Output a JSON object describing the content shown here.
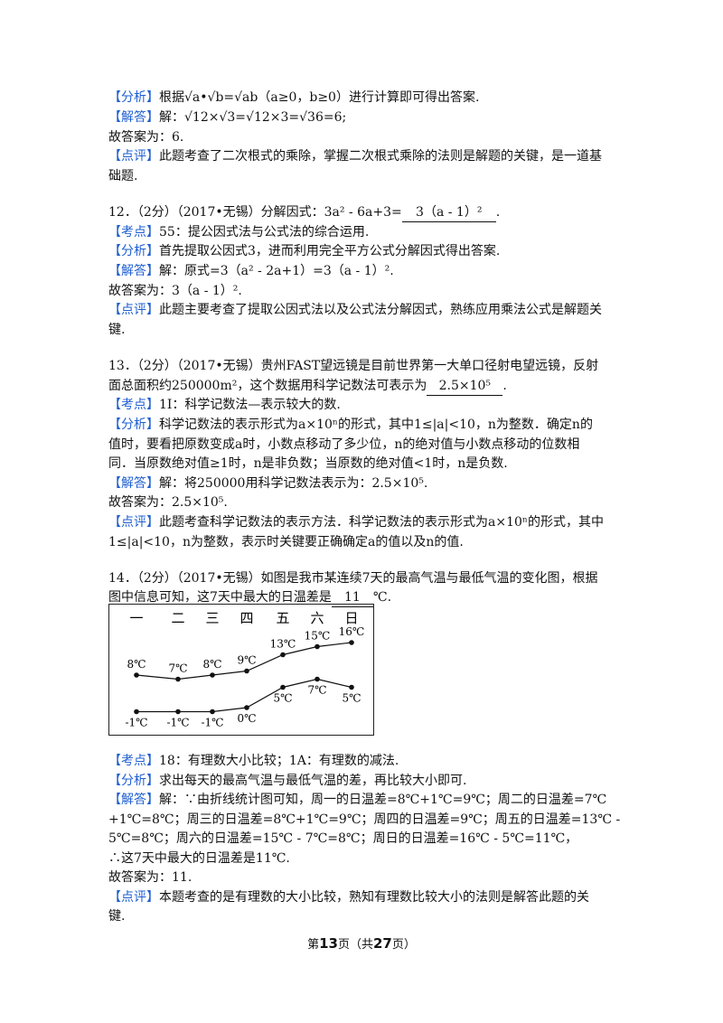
{
  "q11": {
    "analysis_tag": "【分析】",
    "analysis_text": "根据√a•√b=√ab（a≥0，b≥0）进行计算即可得出答案.",
    "solution_tag": "【解答】",
    "solution_text": "解：√12×√3=√12×3=√36=6;",
    "answer": "故答案为：6.",
    "comment_tag": "【点评】",
    "comment_1": "此题考查了二次根式的乘除，掌握二次根式乘除的法则是解题的关键，是一道基",
    "comment_2": "础题."
  },
  "q12": {
    "stem_prefix": "12．（2分）（2017•无锡）分解因式：3a² - 6a+3=",
    "blank": "3（a - 1）²",
    "stem_suffix": ".",
    "point_tag": "【考点】",
    "point_text": "55：提公因式法与公式法的综合运用.",
    "analysis_tag": "【分析】",
    "analysis_text": "首先提取公因式3，进而利用完全平方公式分解因式得出答案.",
    "solution_tag": "【解答】",
    "solution_text": "解：原式=3（a² - 2a+1）=3（a - 1）².",
    "answer": "故答案为：3（a - 1）².",
    "comment_tag": "【点评】",
    "comment_1": "此题主要考查了提取公因式法以及公式法分解因式，熟练应用乘法公式是解题关",
    "comment_2": "键."
  },
  "q13": {
    "stem_1": "13．（2分）（2017•无锡）贵州FAST望远镜是目前世界第一大单口径射电望远镜，反射",
    "stem_2_prefix": "面总面积约250000m²，这个数据用科学记数法可表示为",
    "blank": "2.5×10⁵",
    "stem_2_suffix": ".",
    "point_tag": "【考点】",
    "point_text": "1I：科学记数法—表示较大的数.",
    "analysis_tag": "【分析】",
    "analysis_1": "科学记数法的表示形式为a×10ⁿ的形式，其中1≤|a|<10，n为整数．确定n的",
    "analysis_2": "值时，要看把原数变成a时，小数点移动了多少位，n的绝对值与小数点移动的位数相",
    "analysis_3": "同．当原数绝对值≥1时，n是非负数；当原数的绝对值<1时，n是负数.",
    "solution_tag": "【解答】",
    "solution_text": "解：将250000用科学记数法表示为：2.5×10⁵.",
    "answer": "故答案为：2.5×10⁵.",
    "comment_tag": "【点评】",
    "comment_1": "此题考查科学记数法的表示方法．科学记数法的表示形式为a×10ⁿ的形式，其中",
    "comment_2": "1≤|a|<10，n为整数，表示时关键要正确确定a的值以及n的值."
  },
  "q14": {
    "stem_1": "14．（2分）（2017•无锡）如图是我市某连续7天的最高气温与最低气温的变化图，根据",
    "stem_2_prefix": "图中信息可知，这7天中最大的日温差是",
    "blank": "11",
    "stem_2_suffix": "℃.",
    "point_tag": "【考点】",
    "point_text": "18：有理数大小比较；1A：有理数的减法.",
    "analysis_tag": "【分析】",
    "analysis_text": "求出每天的最高气温与最低气温的差，再比较大小即可.",
    "solution_tag": "【解答】",
    "solution_1": "解：∵由折线统计图可知，周一的日温差=8℃+1℃=9℃；周二的日温差=7℃",
    "solution_2": "+1℃=8℃；周三的日温差=8℃+1℃=9℃；周四的日温差=9℃；周五的日温差=13℃ -",
    "solution_3": "5℃=8℃；周六的日温差=15℃ - 7℃=8℃；周日的日温差=16℃ - 5℃=11℃，",
    "conclusion": "∴这7天中最大的日温差是11℃.",
    "answer": "故答案为：11.",
    "comment_tag": "【点评】",
    "comment_1": "本题考查的是有理数的大小比较，熟知有理数比较大小的法则是解答此题的关",
    "comment_2": "键."
  },
  "chart_data": {
    "type": "line",
    "categories": [
      "一",
      "二",
      "三",
      "四",
      "五",
      "六",
      "日"
    ],
    "series": [
      {
        "values": [
          8,
          7,
          8,
          9,
          13,
          15,
          16
        ],
        "labels": [
          "8℃",
          "7℃",
          "8℃",
          "9℃",
          "13℃",
          "15℃",
          "16℃"
        ]
      },
      {
        "values": [
          -1,
          -1,
          -1,
          0,
          5,
          7,
          5
        ],
        "labels": [
          "-1℃",
          "-1℃",
          "-1℃",
          "0℃",
          "5℃",
          "7℃",
          "5℃"
        ]
      }
    ],
    "grid": false,
    "legend": "none"
  },
  "footer": {
    "prefix": "第",
    "page": "13",
    "mid": "页（共",
    "total": "27",
    "suffix": "页）"
  }
}
